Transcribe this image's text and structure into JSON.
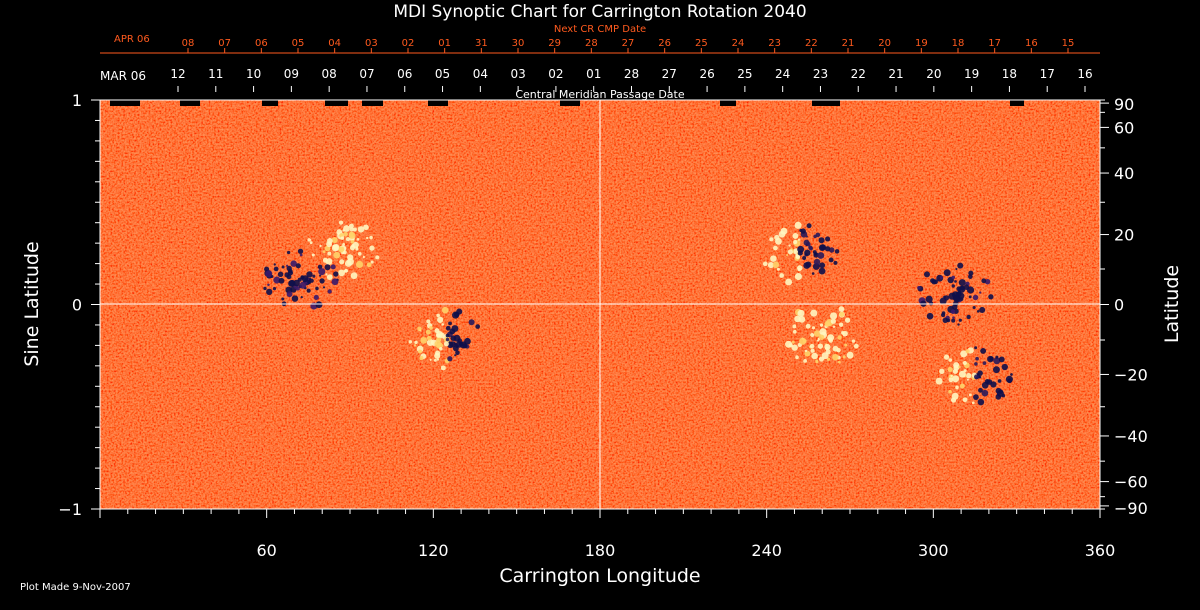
{
  "chart_data": {
    "type": "heatmap",
    "title": "MDI Synoptic Chart for Carrington Rotation 2040",
    "xlabel": "Carrington Longitude",
    "ylabel_left": "Sine Latitude",
    "ylabel_right": "Latitude",
    "xlim": [
      0,
      360
    ],
    "ylim": [
      -1,
      1
    ],
    "x_ticks": [
      60,
      120,
      180,
      240,
      300,
      360
    ],
    "y_left_ticks": [
      {
        "value": 1,
        "label": "1"
      },
      {
        "value": 0,
        "label": "0"
      },
      {
        "value": -1,
        "label": "−1"
      }
    ],
    "y_right_ticks": [
      90,
      60,
      40,
      20,
      0,
      -20,
      -40,
      -60,
      -90
    ],
    "top_axis_label": "Central Meridian Passage Date",
    "top_axis_start_label": "MAR 06",
    "top_axis_dates": [
      "12",
      "11",
      "10",
      "09",
      "08",
      "07",
      "06",
      "05",
      "04",
      "03",
      "02",
      "01",
      "28",
      "27",
      "26",
      "25",
      "24",
      "23",
      "22",
      "21",
      "20",
      "19",
      "18",
      "17",
      "16"
    ],
    "next_cr_label": "Next CR CMP Date",
    "next_cr_start_label": "APR 06",
    "next_cr_dates": [
      "08",
      "07",
      "06",
      "05",
      "04",
      "03",
      "02",
      "01",
      "31",
      "30",
      "29",
      "28",
      "27",
      "26",
      "25",
      "24",
      "23",
      "22",
      "21",
      "20",
      "19",
      "18",
      "17",
      "16",
      "15"
    ],
    "grid": "center cross at longitude 180 and latitude 0",
    "colors": {
      "background": "#ff4a12",
      "positive": "#fff6c0",
      "negative": "#10104a",
      "text_orange": "#ff5a1e"
    },
    "regions": [
      {
        "lon": 125,
        "sinlat": -0.17,
        "polarity": "mixed"
      },
      {
        "lon": 87,
        "sinlat": 0.27,
        "polarity": "positive"
      },
      {
        "lon": 72,
        "sinlat": 0.12,
        "polarity": "negative"
      },
      {
        "lon": 252,
        "sinlat": 0.25,
        "polarity": "mixed"
      },
      {
        "lon": 315,
        "sinlat": -0.35,
        "polarity": "mixed"
      },
      {
        "lon": 260,
        "sinlat": -0.15,
        "polarity": "positive"
      },
      {
        "lon": 308,
        "sinlat": 0.05,
        "polarity": "negative"
      }
    ]
  },
  "footer": {
    "plot_made": "Plot Made  9-Nov-2007"
  }
}
